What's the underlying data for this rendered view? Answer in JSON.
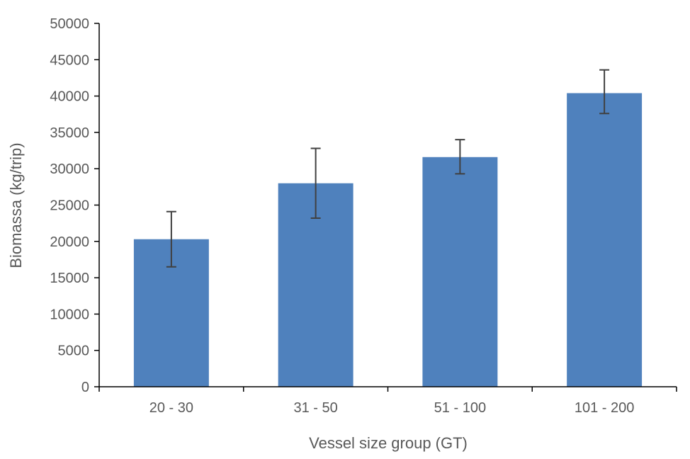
{
  "chart_data": {
    "type": "bar",
    "title": "",
    "xlabel": "Vessel size group (GT)",
    "ylabel": "Biomassa (kg/trip)",
    "categories": [
      "20 - 30",
      "31 - 50",
      "51 - 100",
      "101 - 200"
    ],
    "values": [
      20300,
      28000,
      31600,
      40400
    ],
    "error_bars": {
      "lower": [
        16500,
        23200,
        29300,
        37600
      ],
      "upper": [
        24100,
        32800,
        34000,
        43600
      ]
    },
    "ylim": [
      0,
      50000
    ],
    "y_ticks": [
      "0",
      "5000",
      "10000",
      "15000",
      "20000",
      "25000",
      "30000",
      "35000",
      "40000",
      "45000",
      "50000"
    ],
    "grid": false,
    "legend": "none",
    "colors": {
      "bar": "#4f81bd",
      "error_bar": "#404040",
      "axis": "#000000",
      "text": "#595959"
    }
  }
}
